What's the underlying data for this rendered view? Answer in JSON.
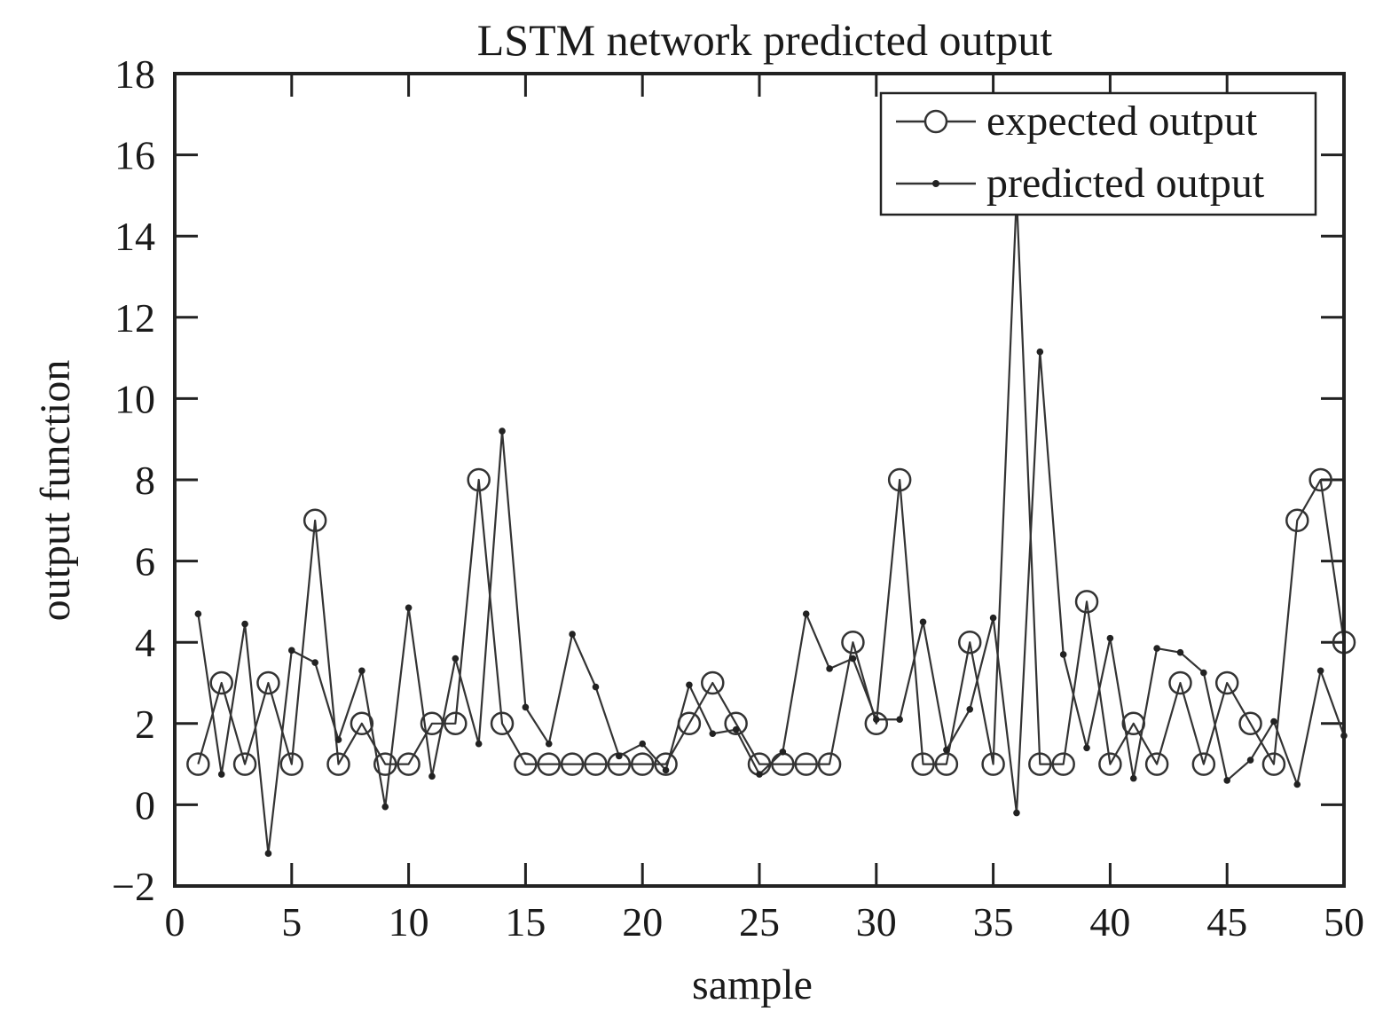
{
  "chart_data": {
    "type": "line",
    "title": "LSTM network predicted output",
    "xlabel": "sample",
    "ylabel": "output function",
    "xlim": [
      0,
      50
    ],
    "ylim": [
      -2,
      18
    ],
    "xticks": [
      0,
      5,
      10,
      15,
      20,
      25,
      30,
      35,
      40,
      45,
      50
    ],
    "yticks": [
      -2,
      0,
      2,
      4,
      6,
      8,
      10,
      12,
      14,
      16,
      18
    ],
    "ytick_labels": [
      "−2",
      "0",
      "2",
      "4",
      "6",
      "8",
      "10",
      "12",
      "14",
      "16",
      "18"
    ],
    "grid": false,
    "legend_position": "top-right",
    "line_color": "#333333",
    "x": [
      1,
      2,
      3,
      4,
      5,
      6,
      7,
      8,
      9,
      10,
      11,
      12,
      13,
      14,
      15,
      16,
      17,
      18,
      19,
      20,
      21,
      22,
      23,
      24,
      25,
      26,
      27,
      28,
      29,
      30,
      31,
      32,
      33,
      34,
      35,
      36,
      37,
      38,
      39,
      40,
      41,
      42,
      43,
      44,
      45,
      46,
      47,
      48,
      49,
      50
    ],
    "series": [
      {
        "name": "expected output",
        "marker": "circle",
        "values": [
          1,
          3,
          1,
          3,
          1,
          7,
          1,
          2,
          1,
          1,
          2,
          2,
          8,
          2,
          1,
          1,
          1,
          1,
          1,
          1,
          1,
          2,
          3,
          2,
          1,
          1,
          1,
          1,
          4,
          2,
          8,
          1,
          1,
          4,
          1,
          15,
          1,
          1,
          5,
          1,
          2,
          1,
          3,
          1,
          3,
          2,
          1,
          7,
          8,
          4
        ]
      },
      {
        "name": "predicted output",
        "marker": "dot",
        "values": [
          4.7,
          0.75,
          4.45,
          -1.2,
          3.8,
          3.5,
          1.6,
          3.3,
          -0.05,
          4.85,
          0.7,
          3.6,
          1.5,
          9.2,
          2.4,
          1.5,
          4.2,
          2.9,
          1.2,
          1.5,
          0.85,
          2.95,
          1.75,
          1.85,
          0.75,
          1.3,
          4.7,
          3.35,
          3.6,
          2.1,
          2.1,
          4.5,
          1.35,
          2.35,
          4.6,
          -0.2,
          11.15,
          3.7,
          1.4,
          4.1,
          0.65,
          3.85,
          3.75,
          3.25,
          0.6,
          1.1,
          2.05,
          0.5,
          3.3,
          1.7
        ]
      }
    ]
  }
}
